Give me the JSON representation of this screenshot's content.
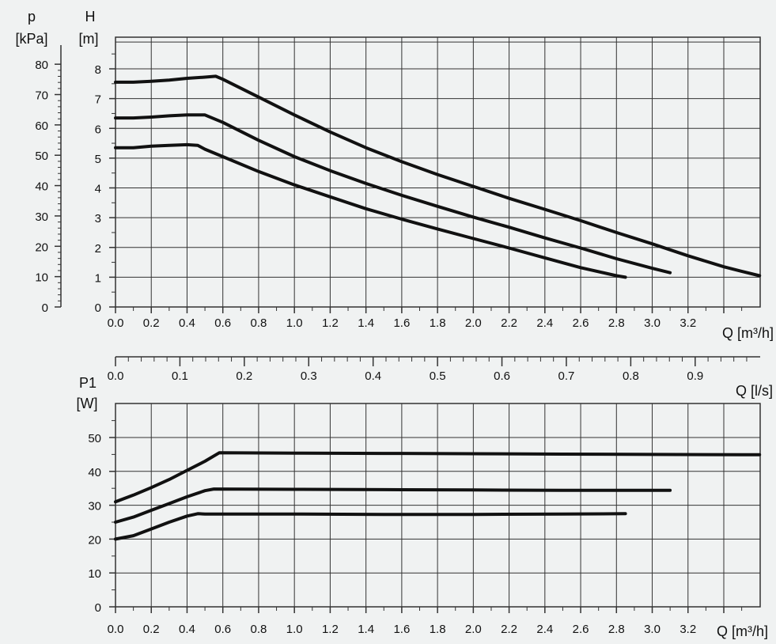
{
  "background_color": "#f0f2f2",
  "curve_color": "#111111",
  "grid_color": "#333333",
  "chart_data": [
    {
      "type": "line",
      "name_id": "head-chart",
      "x_label": "Q [m³/h]",
      "x_ticks": [
        "0.0",
        "0.2",
        "0.4",
        "0.6",
        "0.8",
        "1.0",
        "1.2",
        "1.4",
        "1.6",
        "1.8",
        "2.0",
        "2.2",
        "2.4",
        "2.6",
        "2.8",
        "3.0",
        "3.2"
      ],
      "xlim": [
        0,
        3.6
      ],
      "y_label_unit_left": "[kPa]",
      "y_label_left": "p",
      "y_ticks_left": [
        "0",
        "10",
        "20",
        "30",
        "40",
        "50",
        "60",
        "70",
        "80"
      ],
      "y_label_unit_right": "[m]",
      "y_label_right": "H",
      "y_ticks_right": [
        "0",
        "1",
        "2",
        "3",
        "4",
        "5",
        "6",
        "7",
        "8"
      ],
      "ylim": [
        0,
        9
      ],
      "grid": true,
      "series": [
        {
          "x": [
            0.0,
            0.1,
            0.2,
            0.3,
            0.4,
            0.46,
            0.5,
            0.6,
            0.8,
            1.0,
            1.2,
            1.4,
            1.6,
            1.8,
            2.0,
            2.2,
            2.4,
            2.6,
            2.8,
            2.85
          ],
          "y": [
            5.35,
            5.35,
            5.4,
            5.43,
            5.45,
            5.43,
            5.3,
            5.05,
            4.55,
            4.1,
            3.7,
            3.3,
            2.95,
            2.62,
            2.3,
            1.98,
            1.65,
            1.32,
            1.05,
            1.0
          ]
        },
        {
          "x": [
            0.0,
            0.1,
            0.2,
            0.3,
            0.4,
            0.5,
            0.52,
            0.6,
            0.8,
            1.0,
            1.2,
            1.4,
            1.6,
            1.8,
            2.0,
            2.2,
            2.4,
            2.6,
            2.8,
            3.0,
            3.1
          ],
          "y": [
            6.35,
            6.35,
            6.38,
            6.42,
            6.45,
            6.45,
            6.4,
            6.2,
            5.6,
            5.05,
            4.58,
            4.15,
            3.75,
            3.38,
            3.02,
            2.68,
            2.32,
            1.98,
            1.62,
            1.3,
            1.15
          ]
        },
        {
          "x": [
            0.0,
            0.1,
            0.2,
            0.3,
            0.4,
            0.5,
            0.56,
            0.6,
            0.8,
            1.0,
            1.2,
            1.4,
            1.6,
            1.8,
            2.0,
            2.2,
            2.4,
            2.6,
            2.8,
            3.0,
            3.2,
            3.4,
            3.5,
            3.6
          ],
          "y": [
            7.55,
            7.55,
            7.58,
            7.62,
            7.68,
            7.72,
            7.75,
            7.65,
            7.05,
            6.45,
            5.88,
            5.35,
            4.88,
            4.45,
            4.05,
            3.65,
            3.28,
            2.9,
            2.5,
            2.12,
            1.72,
            1.35,
            1.2,
            1.05
          ]
        }
      ]
    },
    {
      "type": "axis",
      "name_id": "flow-ls-axis",
      "x_label": "Q [l/s]",
      "x_ticks": [
        "0.0",
        "0.1",
        "0.2",
        "0.3",
        "0.4",
        "0.5",
        "0.6",
        "0.7",
        "0.8",
        "0.9"
      ],
      "xlim": [
        0,
        1.0
      ]
    },
    {
      "type": "line",
      "name_id": "power-chart",
      "x_label": "Q [m³/h]",
      "x_ticks": [
        "0.0",
        "0.2",
        "0.4",
        "0.6",
        "0.8",
        "1.0",
        "1.2",
        "1.4",
        "1.6",
        "1.8",
        "2.0",
        "2.2",
        "2.4",
        "2.6",
        "2.8",
        "3.0",
        "3.2"
      ],
      "xlim": [
        0,
        3.6
      ],
      "y_label": "P1",
      "y_label_unit": "[W]",
      "y_ticks": [
        "0",
        "10",
        "20",
        "30",
        "40",
        "50"
      ],
      "ylim": [
        0,
        60
      ],
      "grid": true,
      "series": [
        {
          "x": [
            0.0,
            0.1,
            0.2,
            0.3,
            0.4,
            0.46,
            0.5,
            1.0,
            1.5,
            2.0,
            2.5,
            2.85
          ],
          "y": [
            20,
            21,
            23,
            25,
            26.8,
            27.5,
            27.4,
            27.4,
            27.3,
            27.3,
            27.4,
            27.5
          ]
        },
        {
          "x": [
            0.0,
            0.1,
            0.2,
            0.3,
            0.4,
            0.5,
            0.55,
            1.0,
            1.5,
            2.0,
            2.5,
            3.0,
            3.1
          ],
          "y": [
            25,
            26.5,
            28.5,
            30.5,
            32.5,
            34.3,
            34.8,
            34.7,
            34.6,
            34.5,
            34.4,
            34.4,
            34.4
          ]
        },
        {
          "x": [
            0.0,
            0.1,
            0.2,
            0.3,
            0.4,
            0.5,
            0.58,
            1.0,
            1.5,
            2.0,
            2.5,
            3.0,
            3.5,
            3.6
          ],
          "y": [
            31,
            33,
            35.2,
            37.6,
            40.3,
            43,
            45.5,
            45.4,
            45.3,
            45.2,
            45.1,
            45.0,
            44.9,
            44.9
          ]
        }
      ]
    }
  ]
}
